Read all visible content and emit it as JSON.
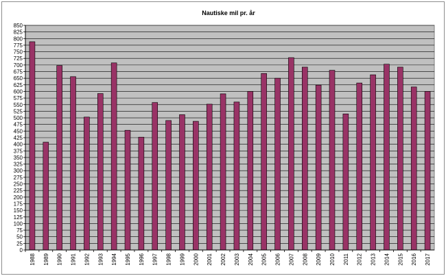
{
  "chart_data": {
    "type": "bar",
    "title": "Nautiske mil pr. år",
    "xlabel": "",
    "ylabel": "",
    "ylim": [
      0,
      850
    ],
    "ytick_step": 25,
    "grid": true,
    "legend": "none",
    "categories": [
      "1988",
      "1989",
      "1990",
      "1991",
      "1992",
      "1993",
      "1994",
      "1995",
      "1996",
      "1997",
      "1998",
      "1999",
      "2000",
      "2001",
      "2002",
      "2003",
      "2004",
      "2005",
      "2006",
      "2007",
      "2008",
      "2009",
      "2010",
      "2011",
      "2012",
      "2013",
      "2014",
      "2015",
      "2016",
      "2017"
    ],
    "values": [
      788,
      408,
      698,
      656,
      503,
      592,
      708,
      453,
      427,
      558,
      490,
      512,
      487,
      552,
      591,
      560,
      600,
      668,
      650,
      728,
      692,
      624,
      680,
      515,
      632,
      663,
      703,
      692,
      617,
      600
    ],
    "colors": {
      "bar_fill": "#993366",
      "bar_edge": "#000000",
      "plot_bg": "#c0c0c0",
      "grid": "#000000"
    }
  }
}
